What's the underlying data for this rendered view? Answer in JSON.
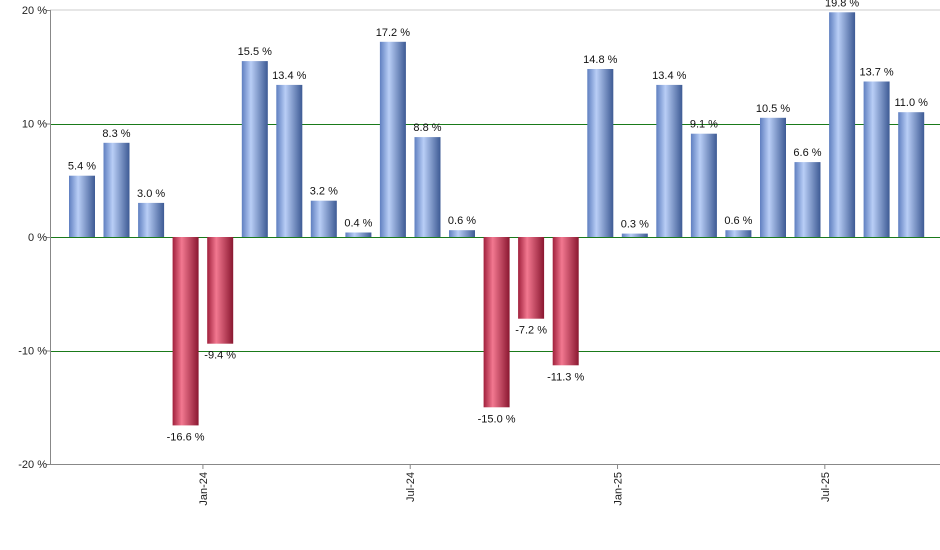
{
  "chart_data": {
    "type": "bar",
    "title": "",
    "xlabel": "",
    "ylabel": "",
    "ylim": [
      -20,
      20
    ],
    "yticks": [
      20,
      10,
      0,
      -10,
      -20
    ],
    "ytick_labels": [
      "20 %",
      "10 %",
      "0 %",
      "-10 %",
      "-20 %"
    ],
    "grid": "horizontal at 10 %, 0 % and -10 %",
    "legend": "none",
    "values": [
      5.4,
      8.3,
      3.0,
      -16.6,
      -9.4,
      15.5,
      13.4,
      3.2,
      0.4,
      17.2,
      8.8,
      0.6,
      -15.0,
      -7.2,
      -11.3,
      14.8,
      0.3,
      13.4,
      9.1,
      0.6,
      10.5,
      6.6,
      19.8,
      13.7,
      11.0
    ],
    "data_labels": [
      "5.4 %",
      "8.3 %",
      "3.0 %",
      "-16.6 %",
      "-9.4 %",
      "15.5 %",
      "13.4 %",
      "3.2 %",
      "0.4 %",
      "17.2 %",
      "8.8 %",
      "0.6 %",
      "-15.0 %",
      "-7.2 %",
      "-11.3 %",
      "14.8 %",
      "0.3 %",
      "13.4 %",
      "9.1 %",
      "0.6 %",
      "10.5 %",
      "6.6 %",
      "19.8 %",
      "13.7 %",
      "11.0 %"
    ],
    "x_tick_labels": [
      {
        "label": "Jan-24",
        "after_bar": 3
      },
      {
        "label": "Jul-24",
        "after_bar": 9
      },
      {
        "label": "Jan-25",
        "after_bar": 15
      },
      {
        "label": "Jul-25",
        "after_bar": 21
      }
    ],
    "colors": {
      "positive": "#7f9fdb",
      "negative": "#c2304f",
      "gridline": "#1a7a1a",
      "axis": "#888888"
    }
  }
}
